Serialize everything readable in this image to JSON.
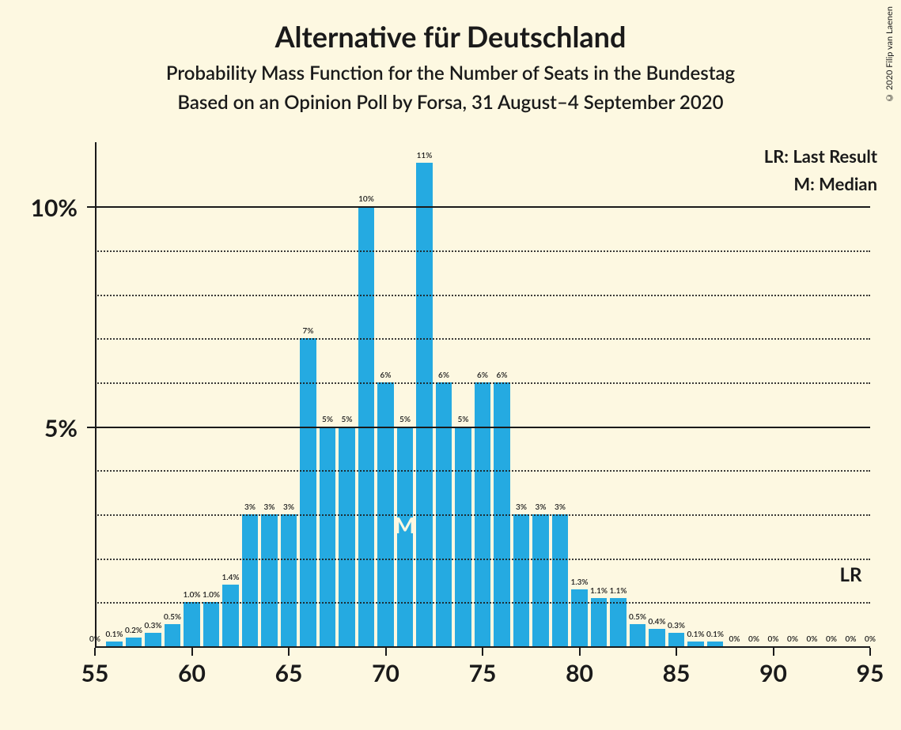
{
  "title": "Alternative für Deutschland",
  "subtitle": "Probability Mass Function for the Number of Seats in the Bundestag",
  "basis": "Based on an Opinion Poll by Forsa, 31 August–4 September 2020",
  "legend_lr": "LR: Last Result",
  "legend_m": "M: Median",
  "copyright": "© 2020 Filip van Laenen",
  "chart": {
    "type": "bar",
    "background_color": "#fdf8e1",
    "bar_color": "#25aae1",
    "axis_color": "#1a1a1a",
    "grid_major_color": "#1a1a1a",
    "grid_minor_style": "dotted",
    "title_fontsize": 36,
    "subtitle_fontsize": 24,
    "axis_label_fontsize": 30,
    "bar_label_fontsize": 10,
    "x_min": 55,
    "x_max": 95,
    "x_tick_step": 5,
    "y_min": 0,
    "y_max": 11.5,
    "y_major_ticks": [
      5,
      10
    ],
    "y_minor_ticks": [
      1,
      2,
      3,
      4,
      6,
      7,
      8,
      9
    ],
    "y_tick_labels": {
      "5": "5%",
      "10": "10%"
    },
    "bar_width_ratio": 0.82,
    "median_seat": 71,
    "median_label": "M",
    "lr_seat": 94,
    "lr_label": "LR",
    "data": [
      {
        "x": 55,
        "y": 0,
        "label": "0%"
      },
      {
        "x": 56,
        "y": 0.1,
        "label": "0.1%"
      },
      {
        "x": 57,
        "y": 0.2,
        "label": "0.2%"
      },
      {
        "x": 58,
        "y": 0.3,
        "label": "0.3%"
      },
      {
        "x": 59,
        "y": 0.5,
        "label": "0.5%"
      },
      {
        "x": 60,
        "y": 1.0,
        "label": "1.0%"
      },
      {
        "x": 61,
        "y": 1.0,
        "label": "1.0%"
      },
      {
        "x": 62,
        "y": 1.4,
        "label": "1.4%"
      },
      {
        "x": 63,
        "y": 3,
        "label": "3%"
      },
      {
        "x": 64,
        "y": 3,
        "label": "3%"
      },
      {
        "x": 65,
        "y": 3,
        "label": "3%"
      },
      {
        "x": 66,
        "y": 7,
        "label": "7%"
      },
      {
        "x": 67,
        "y": 5,
        "label": "5%"
      },
      {
        "x": 68,
        "y": 5,
        "label": "5%"
      },
      {
        "x": 69,
        "y": 10,
        "label": "10%"
      },
      {
        "x": 70,
        "y": 6,
        "label": "6%"
      },
      {
        "x": 71,
        "y": 5,
        "label": "5%"
      },
      {
        "x": 72,
        "y": 11,
        "label": "11%"
      },
      {
        "x": 73,
        "y": 6,
        "label": "6%"
      },
      {
        "x": 74,
        "y": 5,
        "label": "5%"
      },
      {
        "x": 75,
        "y": 6,
        "label": "6%"
      },
      {
        "x": 76,
        "y": 6,
        "label": "6%"
      },
      {
        "x": 77,
        "y": 3,
        "label": "3%"
      },
      {
        "x": 78,
        "y": 3,
        "label": "3%"
      },
      {
        "x": 79,
        "y": 3,
        "label": "3%"
      },
      {
        "x": 80,
        "y": 1.3,
        "label": "1.3%"
      },
      {
        "x": 81,
        "y": 1.1,
        "label": "1.1%"
      },
      {
        "x": 82,
        "y": 1.1,
        "label": "1.1%"
      },
      {
        "x": 83,
        "y": 0.5,
        "label": "0.5%"
      },
      {
        "x": 84,
        "y": 0.4,
        "label": "0.4%"
      },
      {
        "x": 85,
        "y": 0.3,
        "label": "0.3%"
      },
      {
        "x": 86,
        "y": 0.1,
        "label": "0.1%"
      },
      {
        "x": 87,
        "y": 0.1,
        "label": "0.1%"
      },
      {
        "x": 88,
        "y": 0,
        "label": "0%"
      },
      {
        "x": 89,
        "y": 0,
        "label": "0%"
      },
      {
        "x": 90,
        "y": 0,
        "label": "0%"
      },
      {
        "x": 91,
        "y": 0,
        "label": "0%"
      },
      {
        "x": 92,
        "y": 0,
        "label": "0%"
      },
      {
        "x": 93,
        "y": 0,
        "label": "0%"
      },
      {
        "x": 94,
        "y": 0,
        "label": "0%"
      },
      {
        "x": 95,
        "y": 0,
        "label": "0%"
      }
    ]
  }
}
